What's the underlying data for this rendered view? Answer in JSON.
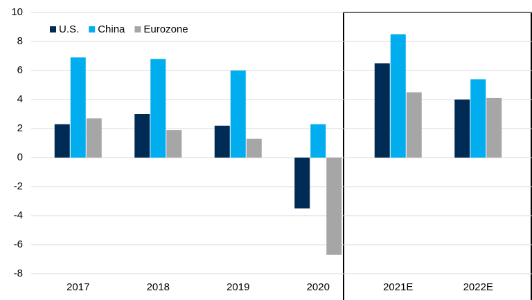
{
  "chart_data": {
    "type": "bar",
    "categories": [
      "2017",
      "2018",
      "2019",
      "2020",
      "2021E",
      "2022E"
    ],
    "series": [
      {
        "name": "U.S.",
        "color": "#002b54",
        "values": [
          2.3,
          3.0,
          2.2,
          -3.5,
          6.5,
          4.0
        ]
      },
      {
        "name": "China",
        "color": "#00aeef",
        "values": [
          6.9,
          6.8,
          6.0,
          2.3,
          8.5,
          5.4
        ]
      },
      {
        "name": "Eurozone",
        "color": "#a6a6a6",
        "values": [
          2.7,
          1.9,
          1.3,
          -6.7,
          4.5,
          4.1
        ]
      }
    ],
    "ylim": [
      -8,
      10
    ],
    "yticks": [
      -8,
      -6,
      -4,
      -2,
      0,
      2,
      4,
      6,
      8,
      10
    ],
    "grid": true
  }
}
